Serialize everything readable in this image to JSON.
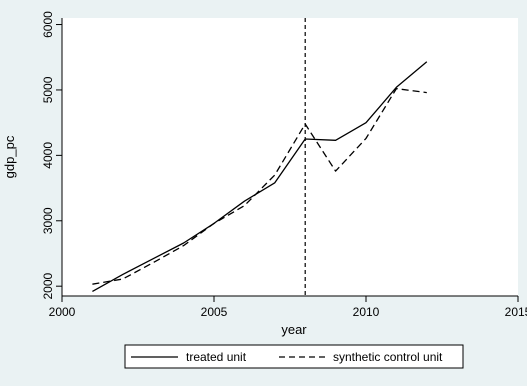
{
  "chart_data": {
    "type": "line",
    "title": "",
    "xlabel": "year",
    "ylabel": "gdp_pc",
    "xlim": [
      2000,
      2015
    ],
    "ylim": [
      1850,
      6100
    ],
    "xticks": [
      2000,
      2005,
      2010,
      2015
    ],
    "yticks": [
      2000,
      3000,
      4000,
      5000,
      6000
    ],
    "xtick_labels": [
      "2000",
      "2005",
      "2010",
      "2015"
    ],
    "ytick_labels": [
      "2000",
      "3000",
      "4000",
      "5000",
      "6000"
    ],
    "grid": false,
    "legend_position": "bottom",
    "reference_line": {
      "x": 2008,
      "style": "dashed"
    },
    "series": [
      {
        "name": "treated unit",
        "style": "solid",
        "color": "#000000",
        "x": [
          2001,
          2002,
          2003,
          2004,
          2005,
          2006,
          2007,
          2008,
          2009,
          2010,
          2011,
          2012
        ],
        "y": [
          1920,
          2180,
          2420,
          2660,
          2960,
          3300,
          3580,
          4250,
          4230,
          4500,
          5040,
          5430
        ]
      },
      {
        "name": "synthetic control unit",
        "style": "dashed",
        "color": "#000000",
        "x": [
          2001,
          2002,
          2003,
          2004,
          2005,
          2006,
          2007,
          2008,
          2009,
          2010,
          2011,
          2012
        ],
        "y": [
          2030,
          2110,
          2360,
          2620,
          2960,
          3230,
          3700,
          4480,
          3760,
          4260,
          5020,
          4960
        ]
      }
    ]
  }
}
